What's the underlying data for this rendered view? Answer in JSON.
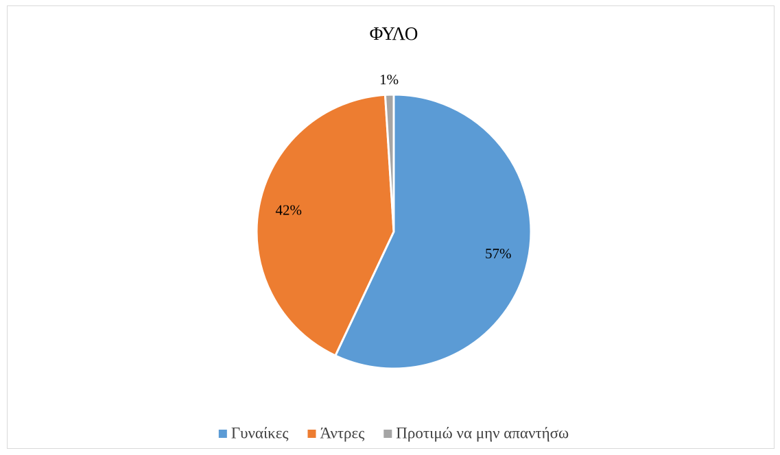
{
  "chart_data": {
    "type": "pie",
    "title": "ΦΥΛΟ",
    "categories": [
      "Γυναίκες",
      "Άντρες",
      "Προτιμώ να μην απαντήσω"
    ],
    "values": [
      57,
      42,
      1
    ],
    "value_labels": [
      "57%",
      "42%",
      "1%"
    ],
    "colors": [
      "#5b9bd5",
      "#ed7d31",
      "#a5a5a5"
    ],
    "legend": "bottom"
  }
}
